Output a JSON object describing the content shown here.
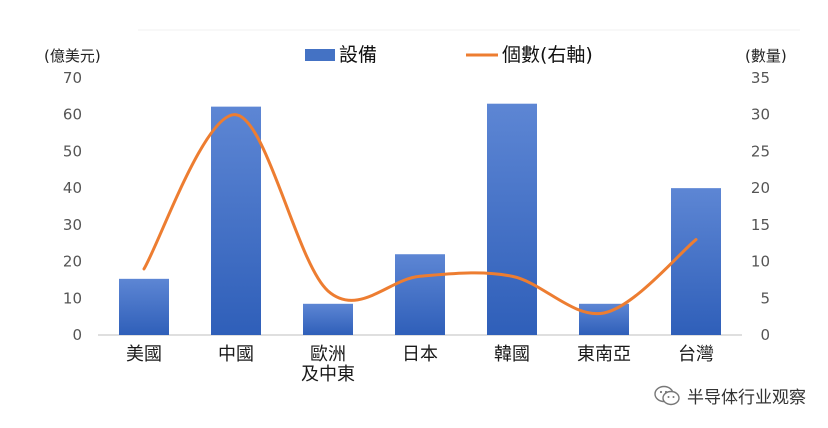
{
  "chart_data": {
    "type": "bar",
    "categories": [
      "美國",
      "中國",
      "歐洲\n及中東",
      "日本",
      "韓國",
      "東南亞",
      "台灣"
    ],
    "series": [
      {
        "name": "設備",
        "type": "bar",
        "axis": "left",
        "values": [
          15.3,
          62.2,
          8.5,
          22.0,
          63.0,
          8.5,
          40.0
        ]
      },
      {
        "name": "個數(右軸)",
        "type": "line",
        "axis": "right",
        "values": [
          9,
          30,
          6,
          8,
          8,
          3,
          13
        ]
      }
    ],
    "y_left": {
      "label": "(億美元)",
      "min": 0,
      "max": 70,
      "ticks": [
        0,
        10,
        20,
        30,
        40,
        50,
        60,
        70
      ]
    },
    "y_right": {
      "label": "(數量)",
      "min": 0,
      "max": 35,
      "ticks": [
        0,
        5,
        10,
        15,
        20,
        25,
        30,
        35
      ]
    },
    "legend": "top-center",
    "grid": false
  },
  "colors": {
    "bar": "#4472c4",
    "bar_top": "#5b84d1",
    "line": "#ed7d31"
  },
  "watermark": {
    "text": "半导体行业观察",
    "icon": "wechat-icon"
  }
}
